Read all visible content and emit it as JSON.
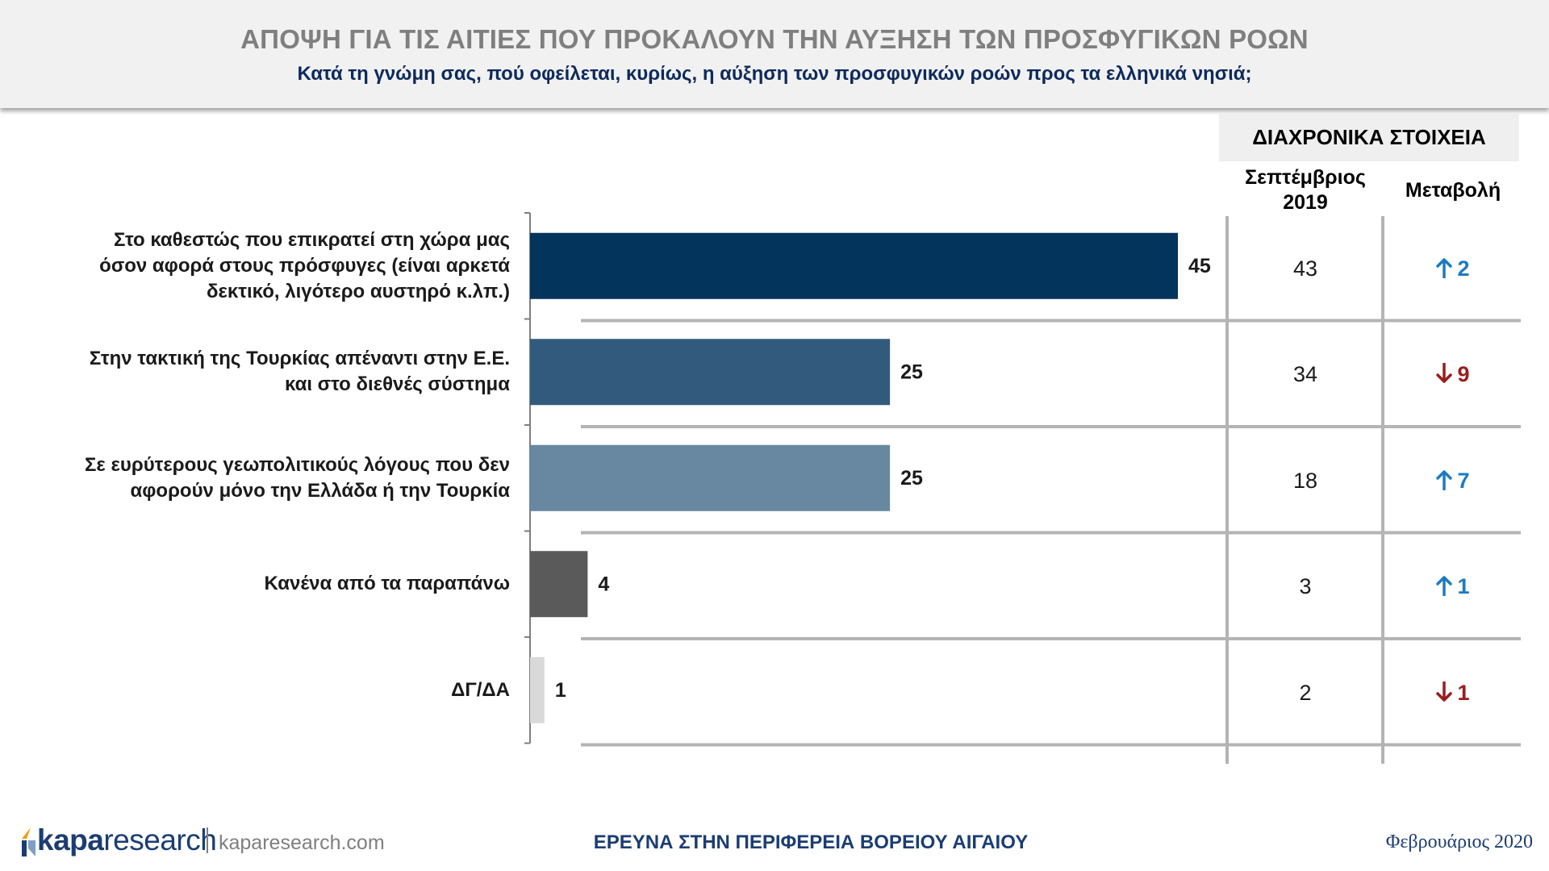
{
  "header": {
    "title": "ΑΠΟΨΗ ΓΙΑ ΤΙΣ ΑΙΤΙΕΣ ΠΟΥ ΠΡΟΚΑΛΟΥΝ ΤΗΝ ΑΥΞΗΣΗ ΤΩΝ ΠΡΟΣΦΥΓΙΚΩΝ ΡΟΩΝ",
    "subtitle": "Κατά τη γνώμη σας, πού οφείλεται, κυρίως, η αύξηση των προσφυγικών ροών προς τα ελληνικά νησιά;"
  },
  "historical": {
    "title": "ΔΙΑΧΡΟΝΙΚΑ ΣΤΟΙΧΕΙΑ",
    "col_prev_line1": "Σεπτέμβριος",
    "col_prev_line2": "2019",
    "col_change": "Μεταβολή"
  },
  "chart_data": {
    "type": "bar",
    "orientation": "horizontal",
    "categories": [
      [
        "Στο καθεστώς που επικρατεί στη χώρα μας",
        "όσον αφορά στους πρόσφυγες (είναι αρκετά",
        "δεκτικό, λιγότερο αυστηρό κ.λπ.)"
      ],
      [
        "Στην τακτική της Τουρκίας απέναντι στην Ε.Ε.",
        "και στο διεθνές σύστημα"
      ],
      [
        "Σε ευρύτερους γεωπολιτικούς λόγους που δεν",
        "αφορούν μόνο την Ελλάδα ή την Τουρκία"
      ],
      [
        "Κανένα από τα παραπάνω"
      ],
      [
        "ΔΓ/ΔΑ"
      ]
    ],
    "values": [
      45,
      25,
      25,
      4,
      1
    ],
    "value_labels": [
      "45",
      "25",
      "25",
      "4",
      "1"
    ],
    "bar_colors": [
      "#03345b",
      "#325a7c",
      "#6788a0",
      "#5a5a5a",
      "#d9d9d9"
    ],
    "previous_values": [
      "43",
      "34",
      "18",
      "3",
      "2"
    ],
    "changes": [
      {
        "direction": "up",
        "value": "2"
      },
      {
        "direction": "down",
        "value": "9"
      },
      {
        "direction": "up",
        "value": "7"
      },
      {
        "direction": "up",
        "value": "1"
      },
      {
        "direction": "down",
        "value": "1"
      }
    ],
    "change_colors": {
      "up": "#1b7bc2",
      "down": "#9b1c1c"
    },
    "xlim": [
      0,
      45
    ]
  },
  "footer": {
    "logo_part1": "kapa",
    "logo_part2": "research",
    "url": "kaparesearch.com",
    "center": "ΕΡΕΥΝΑ ΣΤΗΝ ΠΕΡΙΦΕΡΕΙΑ ΒΟΡΕΙΟΥ ΑΙΓΑΙΟΥ",
    "date": "Φεβρουάριος 2020"
  }
}
